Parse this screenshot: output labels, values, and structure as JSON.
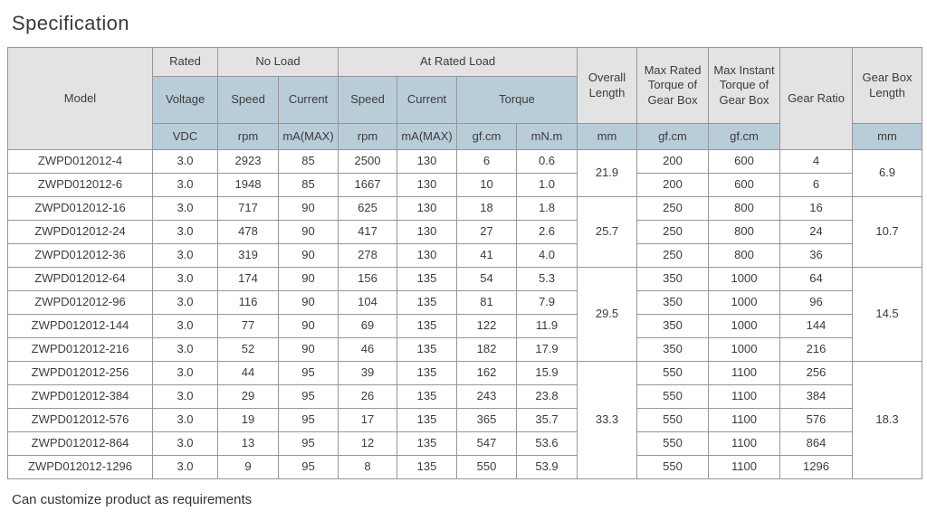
{
  "page": {
    "title": "Specification",
    "footnote": "Can customize product as requirements"
  },
  "colors": {
    "header_grey": "#e3e3e3",
    "header_blue": "#b9cdd9",
    "border": "#979797",
    "text": "#3c3c3c",
    "background": "#ffffff"
  },
  "table": {
    "header": {
      "model": "Model",
      "rated": "Rated",
      "no_load": "No Load",
      "at_rated_load": "At Rated Load",
      "voltage": "Voltage",
      "speed": "Speed",
      "current": "Current",
      "torque": "Torque",
      "overall_length": "Overall Length",
      "max_rated_torque": "Max Rated Torque of Gear Box",
      "max_instant_torque": "Max Instant Torque of Gear Box",
      "gear_ratio": "Gear Ratio",
      "gear_box_length": "Gear Box Length",
      "units": {
        "vdc": "VDC",
        "rpm": "rpm",
        "ma_max": "mA(MAX)",
        "gf_cm": "gf.cm",
        "mn_m": "mN.m",
        "mm": "mm"
      }
    },
    "rows": [
      {
        "model": "ZWPD012012-4",
        "voltage": "3.0",
        "no_load_speed": "2923",
        "no_load_current": "85",
        "rated_speed": "2500",
        "rated_current": "130",
        "torque_gfcm": "6",
        "torque_mnm": "0.6",
        "max_rated_torque": "200",
        "max_instant_torque": "600",
        "gear_ratio": "4"
      },
      {
        "model": "ZWPD012012-6",
        "voltage": "3.0",
        "no_load_speed": "1948",
        "no_load_current": "85",
        "rated_speed": "1667",
        "rated_current": "130",
        "torque_gfcm": "10",
        "torque_mnm": "1.0",
        "max_rated_torque": "200",
        "max_instant_torque": "600",
        "gear_ratio": "6"
      },
      {
        "model": "ZWPD012012-16",
        "voltage": "3.0",
        "no_load_speed": "717",
        "no_load_current": "90",
        "rated_speed": "625",
        "rated_current": "130",
        "torque_gfcm": "18",
        "torque_mnm": "1.8",
        "max_rated_torque": "250",
        "max_instant_torque": "800",
        "gear_ratio": "16"
      },
      {
        "model": "ZWPD012012-24",
        "voltage": "3.0",
        "no_load_speed": "478",
        "no_load_current": "90",
        "rated_speed": "417",
        "rated_current": "130",
        "torque_gfcm": "27",
        "torque_mnm": "2.6",
        "max_rated_torque": "250",
        "max_instant_torque": "800",
        "gear_ratio": "24"
      },
      {
        "model": "ZWPD012012-36",
        "voltage": "3.0",
        "no_load_speed": "319",
        "no_load_current": "90",
        "rated_speed": "278",
        "rated_current": "130",
        "torque_gfcm": "41",
        "torque_mnm": "4.0",
        "max_rated_torque": "250",
        "max_instant_torque": "800",
        "gear_ratio": "36"
      },
      {
        "model": "ZWPD012012-64",
        "voltage": "3.0",
        "no_load_speed": "174",
        "no_load_current": "90",
        "rated_speed": "156",
        "rated_current": "135",
        "torque_gfcm": "54",
        "torque_mnm": "5.3",
        "max_rated_torque": "350",
        "max_instant_torque": "1000",
        "gear_ratio": "64"
      },
      {
        "model": "ZWPD012012-96",
        "voltage": "3.0",
        "no_load_speed": "116",
        "no_load_current": "90",
        "rated_speed": "104",
        "rated_current": "135",
        "torque_gfcm": "81",
        "torque_mnm": "7.9",
        "max_rated_torque": "350",
        "max_instant_torque": "1000",
        "gear_ratio": "96"
      },
      {
        "model": "ZWPD012012-144",
        "voltage": "3.0",
        "no_load_speed": "77",
        "no_load_current": "90",
        "rated_speed": "69",
        "rated_current": "135",
        "torque_gfcm": "122",
        "torque_mnm": "11.9",
        "max_rated_torque": "350",
        "max_instant_torque": "1000",
        "gear_ratio": "144"
      },
      {
        "model": "ZWPD012012-216",
        "voltage": "3.0",
        "no_load_speed": "52",
        "no_load_current": "90",
        "rated_speed": "46",
        "rated_current": "135",
        "torque_gfcm": "182",
        "torque_mnm": "17.9",
        "max_rated_torque": "350",
        "max_instant_torque": "1000",
        "gear_ratio": "216"
      },
      {
        "model": "ZWPD012012-256",
        "voltage": "3.0",
        "no_load_speed": "44",
        "no_load_current": "95",
        "rated_speed": "39",
        "rated_current": "135",
        "torque_gfcm": "162",
        "torque_mnm": "15.9",
        "max_rated_torque": "550",
        "max_instant_torque": "1100",
        "gear_ratio": "256"
      },
      {
        "model": "ZWPD012012-384",
        "voltage": "3.0",
        "no_load_speed": "29",
        "no_load_current": "95",
        "rated_speed": "26",
        "rated_current": "135",
        "torque_gfcm": "243",
        "torque_mnm": "23.8",
        "max_rated_torque": "550",
        "max_instant_torque": "1100",
        "gear_ratio": "384"
      },
      {
        "model": "ZWPD012012-576",
        "voltage": "3.0",
        "no_load_speed": "19",
        "no_load_current": "95",
        "rated_speed": "17",
        "rated_current": "135",
        "torque_gfcm": "365",
        "torque_mnm": "35.7",
        "max_rated_torque": "550",
        "max_instant_torque": "1100",
        "gear_ratio": "576"
      },
      {
        "model": "ZWPD012012-864",
        "voltage": "3.0",
        "no_load_speed": "13",
        "no_load_current": "95",
        "rated_speed": "12",
        "rated_current": "135",
        "torque_gfcm": "547",
        "torque_mnm": "53.6",
        "max_rated_torque": "550",
        "max_instant_torque": "1100",
        "gear_ratio": "864"
      },
      {
        "model": "ZWPD012012-1296",
        "voltage": "3.0",
        "no_load_speed": "9",
        "no_load_current": "95",
        "rated_speed": "8",
        "rated_current": "135",
        "torque_gfcm": "550",
        "torque_mnm": "53.9",
        "max_rated_torque": "550",
        "max_instant_torque": "1100",
        "gear_ratio": "1296"
      }
    ],
    "merged": {
      "overall_length": [
        {
          "rows": 2,
          "value": "21.9"
        },
        {
          "rows": 3,
          "value": "25.7"
        },
        {
          "rows": 4,
          "value": "29.5"
        },
        {
          "rows": 5,
          "value": "33.3"
        }
      ],
      "gear_box_length": [
        {
          "rows": 2,
          "value": "6.9"
        },
        {
          "rows": 3,
          "value": "10.7"
        },
        {
          "rows": 4,
          "value": "14.5"
        },
        {
          "rows": 5,
          "value": "18.3"
        }
      ]
    }
  }
}
